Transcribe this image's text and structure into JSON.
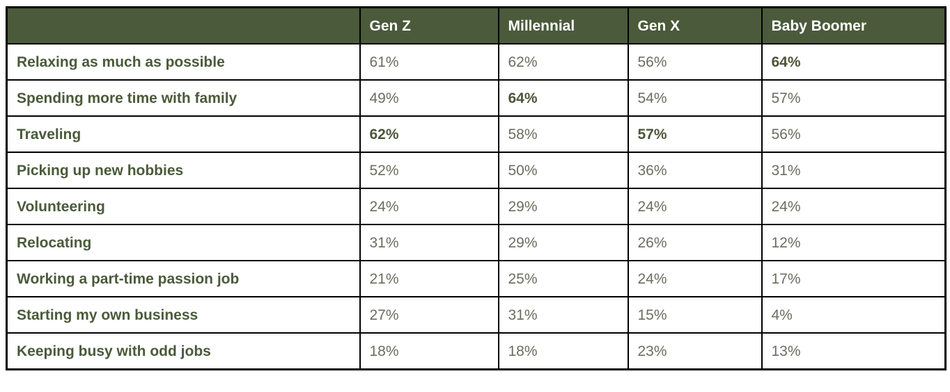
{
  "colors": {
    "header_bg": "#4a5a3a",
    "header_text": "#ffffff",
    "label_text": "#4a5a3a",
    "value_text": "#6a6e5f",
    "value_bold_text": "#4d5539",
    "border": "#000000",
    "row_bg": "#ffffff"
  },
  "chart_data": {
    "type": "table",
    "title": "",
    "columns": [
      "",
      "Gen Z",
      "Millennial",
      "Gen X",
      "Baby Boomer"
    ],
    "rows": [
      {
        "label": "Relaxing as much as possible",
        "values": [
          "61%",
          "62%",
          "56%",
          "64%"
        ],
        "bold_columns": [
          3
        ]
      },
      {
        "label": "Spending more time with family",
        "values": [
          "49%",
          "64%",
          "54%",
          "57%"
        ],
        "bold_columns": [
          1
        ]
      },
      {
        "label": "Traveling",
        "values": [
          "62%",
          "58%",
          "57%",
          "56%"
        ],
        "bold_columns": [
          0,
          2
        ]
      },
      {
        "label": "Picking up new hobbies",
        "values": [
          "52%",
          "50%",
          "36%",
          "31%"
        ],
        "bold_columns": []
      },
      {
        "label": "Volunteering",
        "values": [
          "24%",
          "29%",
          "24%",
          "24%"
        ],
        "bold_columns": []
      },
      {
        "label": "Relocating",
        "values": [
          "31%",
          "29%",
          "26%",
          "12%"
        ],
        "bold_columns": []
      },
      {
        "label": "Working a part-time passion job",
        "values": [
          "21%",
          "25%",
          "24%",
          "17%"
        ],
        "bold_columns": []
      },
      {
        "label": "Starting my own business",
        "values": [
          "27%",
          "31%",
          "15%",
          "4%"
        ],
        "bold_columns": []
      },
      {
        "label": "Keeping busy with odd jobs",
        "values": [
          "18%",
          "18%",
          "23%",
          "13%"
        ],
        "bold_columns": []
      }
    ],
    "layout": {
      "header_position": "top",
      "grid": true,
      "value_unit": "percent"
    }
  }
}
